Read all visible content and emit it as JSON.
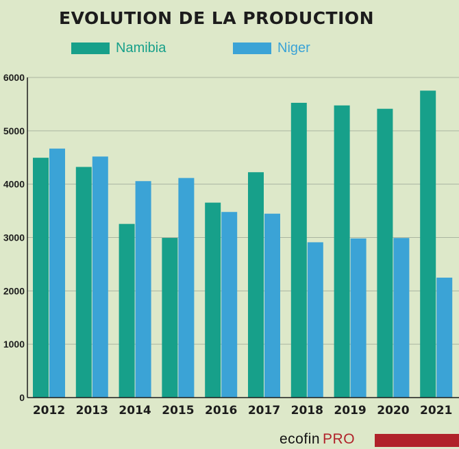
{
  "colors": {
    "background": "#dde8c9",
    "namibia": "#17a08a",
    "niger": "#3ba3d6",
    "brand_red": "#b0222a",
    "grid": "#aab4a0"
  },
  "chart_data": {
    "type": "bar",
    "title": "EVOLUTION DE LA PRODUCTION",
    "categories": [
      "2012",
      "2013",
      "2014",
      "2015",
      "2016",
      "2017",
      "2018",
      "2019",
      "2020",
      "2021"
    ],
    "series": [
      {
        "name": "Namibia",
        "values": [
          4495,
          4323,
          3255,
          2993,
          3654,
          4224,
          5525,
          5476,
          5413,
          5753
        ]
      },
      {
        "name": "Niger",
        "values": [
          4667,
          4518,
          4057,
          4116,
          3479,
          3447,
          2911,
          2983,
          2991,
          2248
        ]
      }
    ],
    "ylim": [
      0,
      6000
    ],
    "yticks": [
      "0",
      "1000",
      "2000",
      "3000",
      "4000",
      "5000",
      "6000"
    ],
    "xlabel": "",
    "ylabel": "",
    "grid": "horizontal",
    "legend_position": "top"
  },
  "brand": {
    "name": "ecofin",
    "suffix": "PRO"
  }
}
